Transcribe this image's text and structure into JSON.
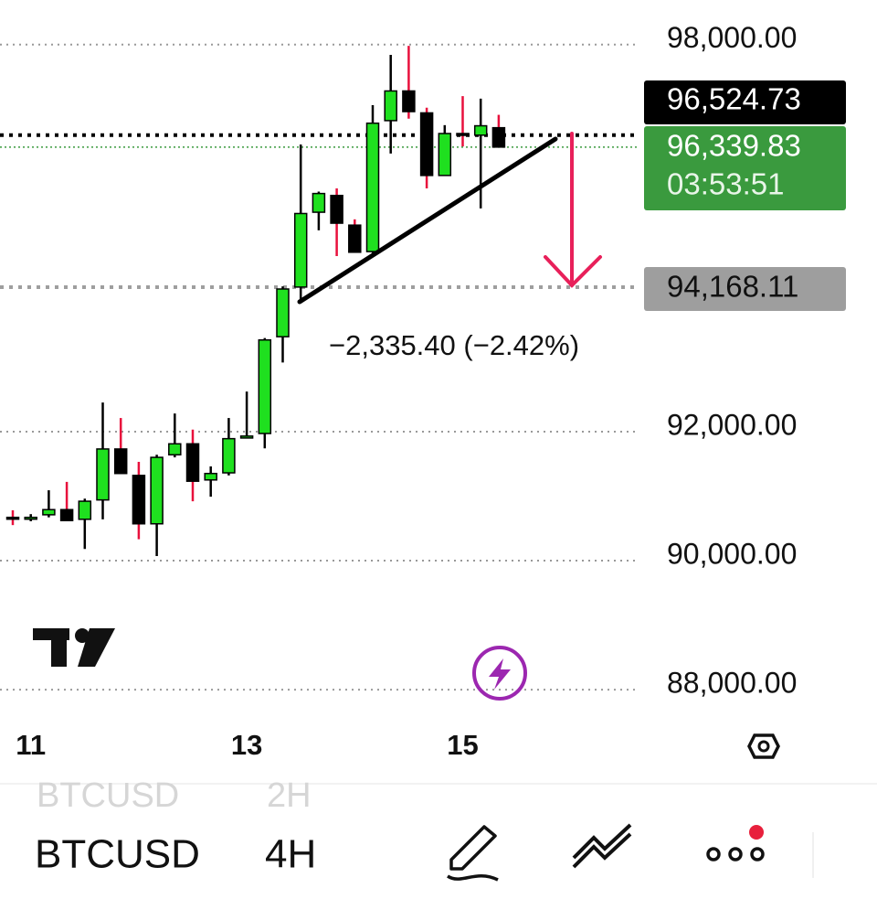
{
  "chart_data": {
    "type": "candlestick",
    "categories": [
      null,
      "11",
      null,
      null,
      null,
      null,
      null,
      null,
      null,
      null,
      null,
      null,
      null,
      "13",
      null,
      null,
      null,
      null,
      null,
      null,
      null,
      null,
      null,
      null,
      null,
      "15",
      null,
      null
    ],
    "open": [
      90600,
      90600,
      90640,
      90720,
      90570,
      90870,
      91660,
      91250,
      90500,
      91570,
      91740,
      91180,
      91290,
      91830,
      91900,
      93400,
      94170,
      95330,
      95590,
      95130,
      94720,
      96750,
      97210,
      96870,
      95900,
      96550,
      96525,
      96640
    ],
    "high": [
      90710,
      90650,
      91020,
      91150,
      90890,
      92380,
      92140,
      91460,
      91570,
      92210,
      91960,
      91390,
      92140,
      92550,
      93380,
      94180,
      96380,
      95650,
      95700,
      95220,
      96990,
      97770,
      97910,
      96950,
      96680,
      97130,
      97090,
      96840
    ],
    "low": [
      90480,
      90540,
      90600,
      90550,
      90110,
      90570,
      91280,
      90260,
      90000,
      91530,
      90850,
      90920,
      91250,
      91830,
      91670,
      93000,
      93940,
      95050,
      94650,
      94710,
      94700,
      96240,
      96780,
      95700,
      95900,
      96350,
      95390,
      96340
    ],
    "close": [
      90590,
      90600,
      90720,
      90550,
      90850,
      91660,
      91280,
      90500,
      91530,
      91740,
      91160,
      91280,
      91820,
      91860,
      93350,
      94140,
      95310,
      95620,
      95160,
      94710,
      96710,
      97210,
      96890,
      95900,
      96550,
      96540,
      96670,
      96340
    ],
    "up_color": "#1fe01f",
    "down_color": "#000000",
    "down_wick_color": "#e8103c",
    "ylim": [
      87420,
      98620
    ],
    "yticks": [
      {
        "value": 88000,
        "label": "88,000.00"
      },
      {
        "value": 90000,
        "label": "90,000.00"
      },
      {
        "value": 92000,
        "label": "92,000.00"
      },
      {
        "value": 98000,
        "label": "98,000.00"
      }
    ],
    "grid": true
  },
  "price_tags": [
    {
      "value": 96524.73,
      "label": "96,524.73",
      "color": "#000000"
    },
    {
      "value": 96339.83,
      "label": "96,339.83",
      "color": "#3a9a3e"
    },
    {
      "value": 94168.11,
      "label": "94,168.11",
      "color": "#9e9e9e"
    }
  ],
  "countdown": "03:53:51",
  "measurement": "−2,335.40 (−2.42%)",
  "toolbar": {
    "previous": {
      "symbol": "BTCUSD",
      "interval": "2H"
    },
    "current": {
      "symbol": "BTCUSD",
      "interval": "4H"
    }
  }
}
